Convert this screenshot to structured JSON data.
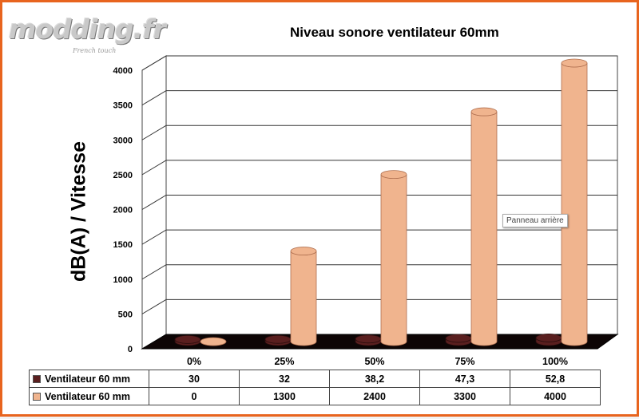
{
  "logo": {
    "text": "modding.fr",
    "tagline": "French touch"
  },
  "tooltip": "Panneau arrière",
  "colors": {
    "series_db": "#5a1f1f",
    "series_speed": "#f0b48e",
    "frame": "#e8641e"
  },
  "chart_data": {
    "type": "bar",
    "title": "Niveau sonore ventilateur 60mm",
    "ylabel": "dB(A) / Vitesse",
    "xlabel": "",
    "categories": [
      "0%",
      "25%",
      "50%",
      "75%",
      "100%"
    ],
    "series": [
      {
        "name": "Ventilateur 60 mm",
        "values": [
          30,
          32,
          38.2,
          47.3,
          52.8
        ],
        "display": [
          "30",
          "32",
          "38,2",
          "47,3",
          "52,8"
        ],
        "color": "#5a1f1f"
      },
      {
        "name": "Ventilateur 60 mm",
        "values": [
          0,
          1300,
          2400,
          3300,
          4000
        ],
        "display": [
          "0",
          "1300",
          "2400",
          "3300",
          "4000"
        ],
        "color": "#f0b48e"
      }
    ],
    "ylim": [
      0,
      4000
    ],
    "yticks": [
      "0",
      "500",
      "1000",
      "1500",
      "2000",
      "2500",
      "3000",
      "3500",
      "4000"
    ],
    "grid": true,
    "legend": "data-table"
  }
}
